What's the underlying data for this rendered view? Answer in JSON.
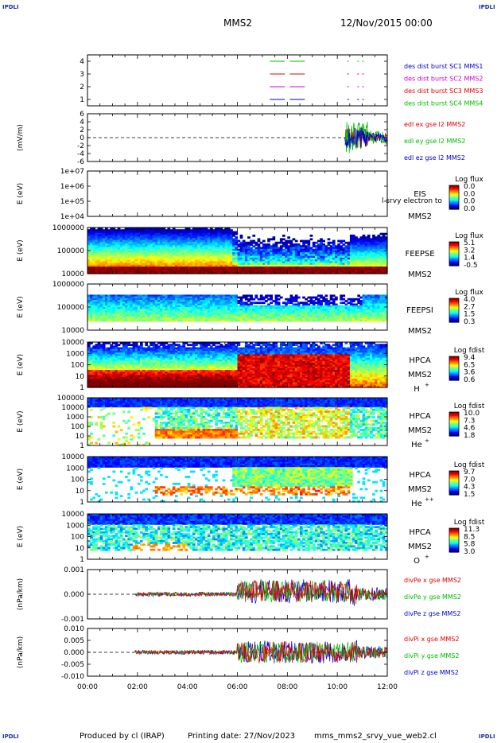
{
  "header": {
    "corner_label": "IPDLI",
    "spacecraft": "MMS2",
    "datetime": "12/Nov/2015 00:00"
  },
  "footer": {
    "produced_by": "Produced by cl (IRAP)",
    "printing_date": "Printing date: 27/Nov/2023",
    "script": "mms_mms2_srvy_vue_web2.cl"
  },
  "colors": {
    "axis": "#000000",
    "red": "#dd0000",
    "green": "#00bb00",
    "blue": "#0000cc",
    "magenta": "#cc00cc"
  },
  "chart_data": {
    "type": "line",
    "x": {
      "ticks": [
        "00:00",
        "02:00",
        "04:00",
        "06:00",
        "08:00",
        "10:00",
        "12:00"
      ],
      "range_hours": [
        0,
        12
      ]
    },
    "panels": [
      {
        "id": "burst",
        "kind": "line",
        "ylabel": "",
        "yticks": [
          "1",
          "2",
          "3",
          "4"
        ],
        "series": [
          {
            "name": "des dist burst SC1 MMS1",
            "color": "#0000cc"
          },
          {
            "name": "des dist burst SC2 MMS2",
            "color": "#cc00cc"
          },
          {
            "name": "des dist burst SC3 MMS3",
            "color": "#dd0000"
          },
          {
            "name": "des dist burst SC4 MMS4",
            "color": "#00bb00"
          }
        ]
      },
      {
        "id": "edl",
        "kind": "line",
        "ylabel": "(mV/m)",
        "yticks": [
          "6",
          "4",
          "2",
          "0",
          "-2",
          "-4",
          "-6"
        ],
        "series": [
          {
            "name": "edl ex gse l2 MMS2",
            "color": "#dd0000"
          },
          {
            "name": "edl ey gse l2 MMS2",
            "color": "#00bb00"
          },
          {
            "name": "edl ez gse l2 MMS2",
            "color": "#0000cc"
          }
        ]
      },
      {
        "id": "eis",
        "kind": "spectrogram",
        "ylabel": "E (eV)",
        "yticks": [
          "1e+07",
          "1e+06",
          "1e+05",
          "1e+04"
        ],
        "instrument": "EIS",
        "spacecraft": "MMS2",
        "overlay_text": "l srvy electron to",
        "colorbar": {
          "title": "Log flux",
          "ticks": [
            "0.0",
            "0.0",
            "0.0",
            "0.0"
          ]
        }
      },
      {
        "id": "feepse",
        "kind": "spectrogram",
        "ylabel": "E (eV)",
        "yticks": [
          "1000000",
          "100000",
          "10000"
        ],
        "instrument": "FEEPSE",
        "spacecraft": "MMS2",
        "colorbar": {
          "title": "Log flux",
          "ticks": [
            "5.1",
            "3.2",
            "1.4",
            "-0.5"
          ]
        }
      },
      {
        "id": "feepsi",
        "kind": "spectrogram",
        "ylabel": "E (eV)",
        "yticks": [
          "1000000",
          "100000",
          "10000"
        ],
        "instrument": "FEEPSI",
        "spacecraft": "MMS2",
        "colorbar": {
          "title": "Log flux",
          "ticks": [
            "4.0",
            "2.7",
            "1.5",
            "0.3"
          ]
        }
      },
      {
        "id": "hpca_h",
        "kind": "spectrogram",
        "ylabel": "E (eV)",
        "yticks": [
          "10000",
          "1000",
          "100",
          "10",
          "1"
        ],
        "instrument": "HPCA",
        "spacecraft": "MMS2",
        "species_base": "H",
        "species_sup": "+",
        "colorbar": {
          "title": "Log fdist",
          "ticks": [
            "9.4",
            "6.5",
            "3.6",
            "0.6"
          ]
        }
      },
      {
        "id": "hpca_he",
        "kind": "spectrogram",
        "ylabel": "E (eV)",
        "yticks": [
          "100000",
          "10000",
          "1000",
          "100",
          "10",
          "1"
        ],
        "instrument": "HPCA",
        "spacecraft": "MMS2",
        "species_base": "He",
        "species_sup": "+",
        "colorbar": {
          "title": "Log fdist",
          "ticks": [
            "10.0",
            "7.3",
            "4.6",
            "1.8"
          ]
        }
      },
      {
        "id": "hpca_hepp",
        "kind": "spectrogram",
        "ylabel": "E (eV)",
        "yticks": [
          "10000",
          "1000",
          "100",
          "10",
          "1"
        ],
        "instrument": "HPCA",
        "spacecraft": "MMS2",
        "species_base": "He",
        "species_sup": "++",
        "colorbar": {
          "title": "Log fdist",
          "ticks": [
            "9.7",
            "7.0",
            "4.3",
            "1.5"
          ]
        }
      },
      {
        "id": "hpca_o",
        "kind": "spectrogram",
        "ylabel": "E (eV)",
        "yticks": [
          "10000",
          "1000",
          "100",
          "10",
          "1"
        ],
        "instrument": "HPCA",
        "spacecraft": "MMS2",
        "species_base": "O",
        "species_sup": "+",
        "colorbar": {
          "title": "Log fdist",
          "ticks": [
            "11.3",
            "8.5",
            "5.8",
            "3.0"
          ]
        }
      },
      {
        "id": "divpe",
        "kind": "line",
        "ylabel": "(nPa/km)",
        "yticks": [
          "0.001",
          "0.000",
          "-0.001"
        ],
        "series": [
          {
            "name": "divPe x gse MMS2",
            "color": "#dd0000"
          },
          {
            "name": "divPe y gse MMS2",
            "color": "#00bb00"
          },
          {
            "name": "divPe z gse MMS2",
            "color": "#0000cc"
          }
        ]
      },
      {
        "id": "divpi",
        "kind": "line",
        "ylabel": "(nPa/km)",
        "yticks": [
          "0.010",
          "0.005",
          "0.000",
          "-0.005",
          "-0.010"
        ],
        "series": [
          {
            "name": "divPi x gse MMS2",
            "color": "#dd0000"
          },
          {
            "name": "divPi y gse MMS2",
            "color": "#00bb00"
          },
          {
            "name": "divPi z gse MMS2",
            "color": "#0000cc"
          }
        ]
      }
    ]
  }
}
